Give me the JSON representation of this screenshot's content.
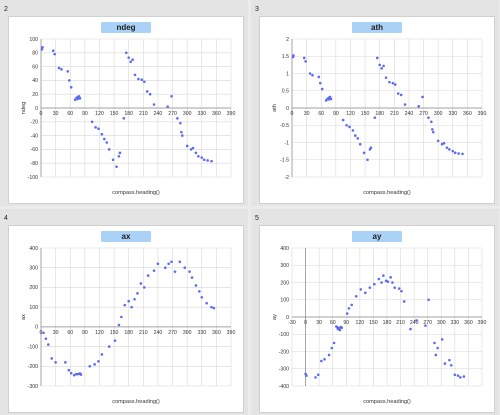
{
  "style": {
    "point_color": "#5b6cf0",
    "grid_color": "#d8d8d8",
    "title_bg": "#a9d2f6"
  },
  "panels": [
    {
      "number": "2",
      "title": "ndeg"
    },
    {
      "number": "3",
      "title": "ath"
    },
    {
      "number": "4",
      "title": "ax"
    },
    {
      "number": "5",
      "title": "ay"
    }
  ],
  "chart_data": [
    {
      "type": "scatter",
      "title": "ndeg",
      "xlabel": "compass.heading()",
      "ylabel": "ndeg",
      "xlim": [
        0,
        390
      ],
      "ylim": [
        -100,
        100
      ],
      "xticks": [
        0,
        30,
        60,
        90,
        120,
        150,
        180,
        210,
        240,
        270,
        300,
        330,
        360,
        390
      ],
      "yticks": [
        -100,
        -80,
        -60,
        -40,
        -20,
        0,
        20,
        40,
        60,
        80,
        100
      ],
      "grid": true,
      "x": [
        2,
        3,
        25,
        28,
        37,
        42,
        55,
        58,
        62,
        70,
        73,
        75,
        76,
        77,
        78,
        79,
        80,
        105,
        112,
        118,
        125,
        130,
        135,
        140,
        148,
        155,
        160,
        162,
        170,
        175,
        180,
        184,
        188,
        193,
        200,
        207,
        212,
        218,
        224,
        232,
        260,
        268,
        280,
        286,
        288,
        290,
        300,
        308,
        312,
        318,
        323,
        330,
        335,
        342,
        350
      ],
      "y": [
        85,
        88,
        83,
        78,
        58,
        56,
        53,
        40,
        30,
        12,
        15,
        13,
        16,
        14,
        17,
        15,
        14,
        -20,
        -28,
        -30,
        -38,
        -45,
        -50,
        -60,
        -75,
        -85,
        -70,
        -65,
        -15,
        80,
        73,
        67,
        70,
        48,
        42,
        41,
        38,
        24,
        20,
        5,
        2,
        17,
        -15,
        -22,
        -35,
        -40,
        -55,
        -60,
        -58,
        -65,
        -70,
        -72,
        -75,
        -76,
        -77
      ]
    },
    {
      "type": "scatter",
      "title": "ath",
      "xlabel": "compass.heading()",
      "ylabel": "ath",
      "xlim": [
        0,
        390
      ],
      "ylim": [
        -2,
        2
      ],
      "xticks": [
        0,
        30,
        60,
        90,
        120,
        150,
        180,
        210,
        240,
        270,
        300,
        330,
        360,
        390
      ],
      "yticks": [
        -2,
        -1.5,
        -1,
        -0.5,
        0,
        0.5,
        1,
        1.5,
        2
      ],
      "grid": true,
      "x": [
        2,
        3,
        25,
        28,
        37,
        42,
        55,
        58,
        62,
        70,
        73,
        75,
        76,
        77,
        78,
        79,
        80,
        105,
        112,
        118,
        125,
        130,
        135,
        140,
        148,
        155,
        160,
        162,
        170,
        175,
        180,
        184,
        188,
        193,
        200,
        207,
        212,
        218,
        224,
        232,
        260,
        268,
        280,
        286,
        288,
        290,
        300,
        308,
        312,
        318,
        323,
        330,
        335,
        342,
        350
      ],
      "y": [
        1.48,
        1.52,
        1.45,
        1.35,
        1.0,
        0.95,
        0.9,
        0.72,
        0.55,
        0.22,
        0.27,
        0.25,
        0.3,
        0.26,
        0.32,
        0.28,
        0.26,
        -0.35,
        -0.5,
        -0.55,
        -0.65,
        -0.8,
        -0.88,
        -1.05,
        -1.3,
        -1.5,
        -1.2,
        -1.15,
        -0.28,
        1.45,
        1.25,
        1.15,
        1.22,
        0.88,
        0.75,
        0.72,
        0.68,
        0.42,
        0.38,
        0.1,
        0.05,
        0.32,
        -0.28,
        -0.4,
        -0.62,
        -0.7,
        -0.95,
        -1.05,
        -1.02,
        -1.15,
        -1.2,
        -1.25,
        -1.3,
        -1.32,
        -1.33
      ]
    },
    {
      "type": "scatter",
      "title": "ax",
      "xlabel": "compass.heading()",
      "ylabel": "ax",
      "xlim": [
        0,
        390
      ],
      "ylim": [
        -300,
        400
      ],
      "xticks": [
        0,
        30,
        60,
        90,
        120,
        150,
        180,
        210,
        240,
        270,
        300,
        330,
        360,
        390
      ],
      "yticks": [
        -300,
        -200,
        -100,
        0,
        100,
        200,
        300,
        400
      ],
      "grid": true,
      "x": [
        5,
        10,
        15,
        22,
        30,
        50,
        57,
        62,
        68,
        72,
        75,
        78,
        80,
        82,
        100,
        110,
        118,
        125,
        140,
        152,
        160,
        165,
        172,
        180,
        186,
        192,
        198,
        205,
        212,
        220,
        232,
        240,
        255,
        262,
        268,
        275,
        285,
        295,
        305,
        310,
        318,
        325,
        330,
        340,
        350,
        355
      ],
      "y": [
        -30,
        -60,
        -90,
        -160,
        -180,
        -180,
        -220,
        -235,
        -245,
        -240,
        -240,
        -238,
        -236,
        -242,
        -200,
        -190,
        -175,
        -140,
        -100,
        -70,
        10,
        50,
        110,
        130,
        100,
        140,
        170,
        220,
        200,
        260,
        285,
        320,
        300,
        320,
        330,
        280,
        330,
        300,
        280,
        250,
        210,
        180,
        150,
        120,
        100,
        95
      ]
    },
    {
      "type": "scatter",
      "title": "ay",
      "xlabel": "compass.heading()",
      "ylabel": "ay",
      "xlim": [
        -30,
        390
      ],
      "ylim": [
        -400,
        400
      ],
      "xticks": [
        -30,
        0,
        30,
        60,
        90,
        120,
        150,
        180,
        210,
        240,
        270,
        300,
        330,
        360,
        390
      ],
      "yticks": [
        -400,
        -300,
        -200,
        -100,
        0,
        100,
        200,
        300,
        400
      ],
      "grid": true,
      "x": [
        0,
        2,
        22,
        28,
        35,
        42,
        52,
        58,
        63,
        68,
        70,
        72,
        74,
        76,
        78,
        80,
        92,
        96,
        102,
        112,
        122,
        132,
        142,
        152,
        162,
        168,
        172,
        178,
        182,
        188,
        192,
        197,
        207,
        212,
        218,
        232,
        245,
        265,
        272,
        285,
        288,
        292,
        302,
        308,
        318,
        322,
        330,
        337,
        342,
        350
      ],
      "y": [
        -330,
        -340,
        -350,
        -335,
        -255,
        -245,
        -220,
        -180,
        -150,
        -55,
        -60,
        -70,
        -65,
        -75,
        -58,
        -62,
        20,
        50,
        70,
        120,
        160,
        140,
        170,
        190,
        220,
        200,
        240,
        210,
        205,
        230,
        200,
        170,
        165,
        150,
        90,
        -70,
        -20,
        -50,
        100,
        -150,
        -220,
        -180,
        -130,
        -270,
        -250,
        -280,
        -335,
        -340,
        -350,
        -345
      ]
    }
  ]
}
